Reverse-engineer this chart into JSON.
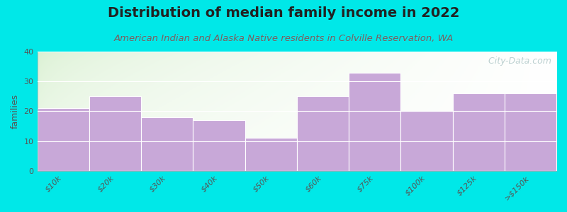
{
  "title": "Distribution of median family income in 2022",
  "subtitle": "American Indian and Alaska Native residents in Colville Reservation, WA",
  "ylabel": "families",
  "categories": [
    "$10k",
    "$20k",
    "$30k",
    "$40k",
    "$50k",
    "$60k",
    "$75k",
    "$100k",
    "$125k",
    ">$150k"
  ],
  "values": [
    21,
    25,
    18,
    17,
    11,
    25,
    33,
    20,
    26,
    26
  ],
  "bar_color": "#c8a8d8",
  "bar_edge_color": "#ffffff",
  "background_color": "#00e8e8",
  "plot_bg_color_topleft": "#d8f0d0",
  "plot_bg_color_right": "#f0f8f0",
  "plot_bg_color_bottom": "#ffffff",
  "title_fontsize": 14,
  "title_color": "#222222",
  "subtitle_fontsize": 9.5,
  "subtitle_color": "#7a6060",
  "ylabel_fontsize": 9,
  "tick_fontsize": 8,
  "tick_color": "#555555",
  "ylim": [
    0,
    40
  ],
  "yticks": [
    0,
    10,
    20,
    30,
    40
  ],
  "watermark": "  City-Data.com",
  "watermark_color": "#b0c8c8",
  "watermark_fontsize": 9
}
